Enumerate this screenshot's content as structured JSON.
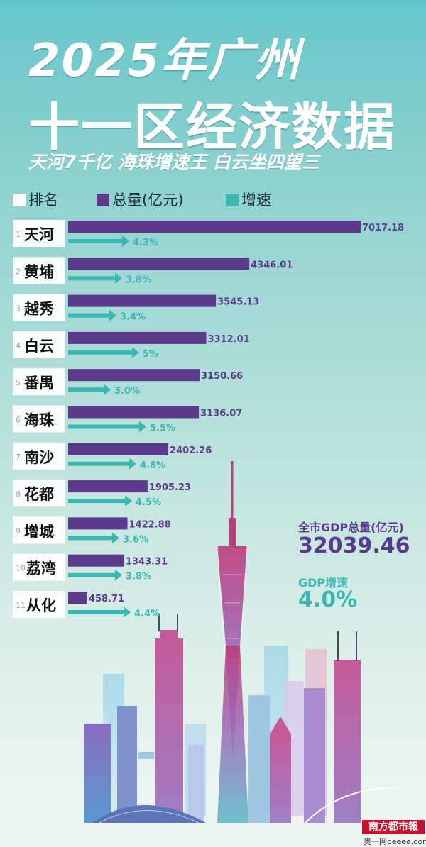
{
  "title_line1": "2025年广州",
  "title_line2": "十一区经济数据",
  "subtitle": "天河7千亿 海珠增速王 白云坐四望三",
  "legend": {
    "rank": "排名",
    "total": "总量(亿元)",
    "growth": "增速"
  },
  "colors": {
    "bar": "#5b3a8c",
    "growth": "#3ab7b3",
    "label_bg": "#ffffff"
  },
  "chart_data": {
    "type": "bar",
    "categories": [
      "天河",
      "黄埔",
      "越秀",
      "白云",
      "番禺",
      "海珠",
      "南沙",
      "花都",
      "增城",
      "荔湾",
      "从化"
    ],
    "ranks": [
      "1",
      "2",
      "3",
      "4",
      "5",
      "6",
      "7",
      "8",
      "9",
      "10",
      "11"
    ],
    "series": [
      {
        "name": "总量(亿元)",
        "values": [
          7017.18,
          4346.01,
          3545.13,
          3312.01,
          3150.66,
          3136.07,
          2402.26,
          1905.23,
          1422.88,
          1343.31,
          458.71
        ],
        "labels": [
          "7017.18",
          "4346.01",
          "3545.13",
          "3312.01",
          "3150.66",
          "3136.07",
          "2402.26",
          "1905.23",
          "1422.88",
          "1343.31",
          "458.71"
        ]
      },
      {
        "name": "增速",
        "values": [
          4.3,
          3.8,
          3.4,
          5,
          3.0,
          5.5,
          4.8,
          4.5,
          3.6,
          3.8,
          4.4
        ],
        "labels": [
          "4.3%",
          "3.8%",
          "3.4%",
          "5%",
          "3.0%",
          "5.5%",
          "4.8%",
          "4.5%",
          "3.6%",
          "3.8%",
          "4.4%"
        ]
      }
    ]
  },
  "totals": {
    "total_label": "全市GDP总量(亿元)",
    "total_value": "32039.46",
    "growth_label": "GDP增速",
    "growth_value": "4.0%"
  },
  "logo_text": "南方都市報",
  "watermark": "奥一网oeeee.com"
}
